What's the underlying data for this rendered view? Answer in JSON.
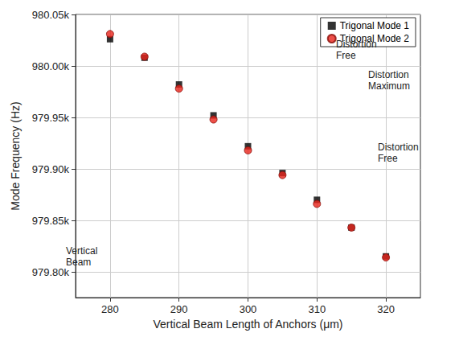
{
  "chart_data": {
    "type": "scatter",
    "x_label": "Vertical Beam Length of Anchors (μm)",
    "y_label": "Mode Frequency (Hz)",
    "x": [
      280,
      285,
      290,
      295,
      300,
      305,
      310,
      315,
      320
    ],
    "series": [
      {
        "name": "Trigonal Mode 1",
        "color": "#000000",
        "marker": "square",
        "values": [
          980026,
          980008,
          979982,
          979952,
          979922,
          979896,
          979870,
          979843,
          979815
        ]
      },
      {
        "name": "Trigonal Mode 2",
        "color": "#e8241c",
        "marker": "circle",
        "values": [
          980031,
          980009,
          979978,
          979948,
          979918,
          979894,
          979866,
          979843,
          979814
        ]
      }
    ],
    "xlim": [
      275,
      325
    ],
    "xticks": [
      280,
      290,
      300,
      310,
      320
    ],
    "ylim": [
      979775,
      980050
    ],
    "yticks": [
      {
        "value": 979800,
        "label": "979.80k"
      },
      {
        "value": 979850,
        "label": "979.85k"
      },
      {
        "value": 979900,
        "label": "979.90k"
      },
      {
        "value": 979950,
        "label": "979.95k"
      },
      {
        "value": 980000,
        "label": "980.00k"
      },
      {
        "value": 980050,
        "label": "980.05k"
      }
    ],
    "annotations": [
      "Distortion Free",
      "Distortion Maximum",
      "Distortion Free",
      "Vertical Beam"
    ],
    "grid": true,
    "legend": "upper right"
  }
}
